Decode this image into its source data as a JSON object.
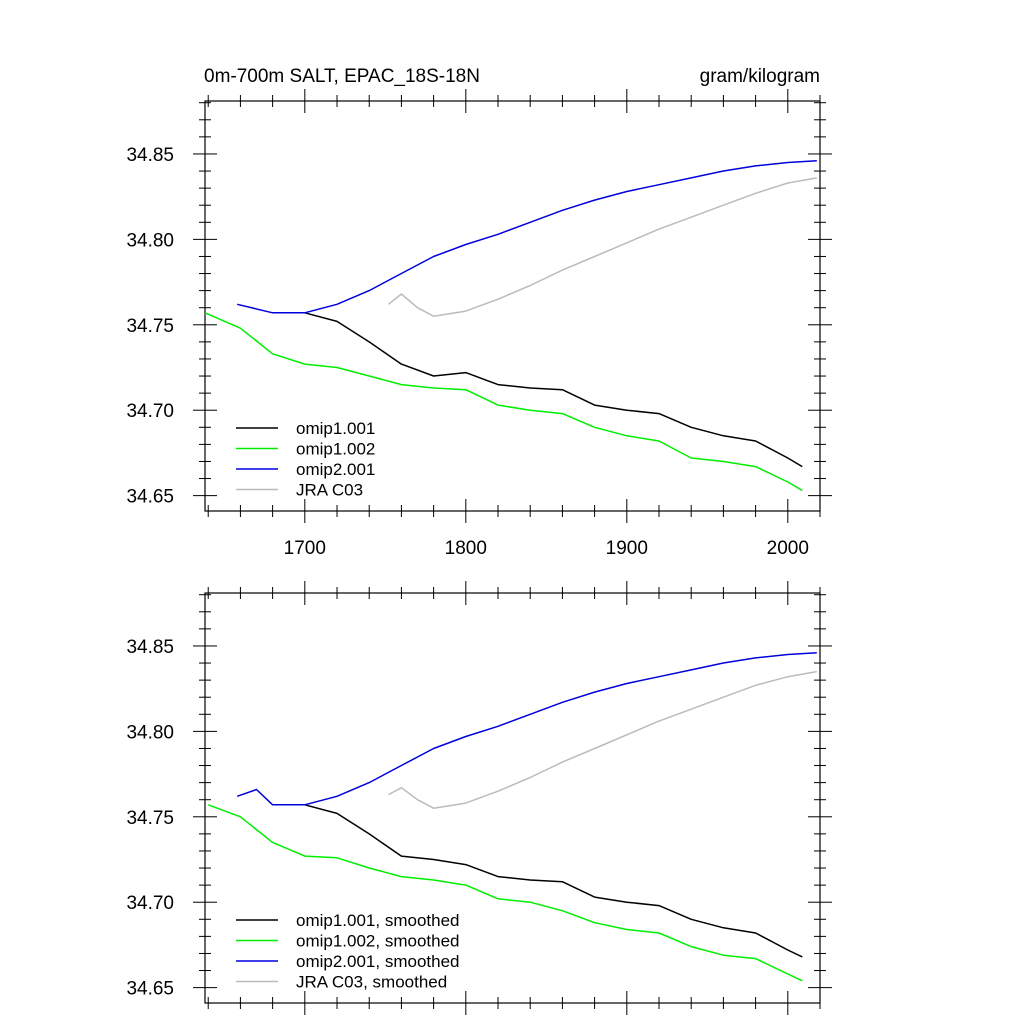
{
  "header": {
    "title": "0m-700m SALT, EPAC_18S-18N",
    "units": "gram/kilogram"
  },
  "colors": {
    "omip1_001": "#000000",
    "omip1_002": "#00ee00",
    "omip2_001": "#0000dd",
    "jra_c03": "#bbbbbb"
  },
  "chart_data": [
    {
      "type": "line",
      "panel": "top",
      "xlim": [
        1638,
        2020
      ],
      "ylim": [
        34.641,
        34.881
      ],
      "x_ticks": [
        1700,
        1800,
        1900,
        2000
      ],
      "y_ticks": [
        34.65,
        34.7,
        34.75,
        34.8,
        34.85
      ],
      "x_tick_labels": [
        "1700",
        "1800",
        "1900",
        "2000"
      ],
      "y_tick_labels": [
        "34.65",
        "34.70",
        "34.75",
        "34.80",
        "34.85"
      ],
      "grid": false,
      "legend_position": "bottom-left",
      "series": [
        {
          "name": "omip1.001",
          "color": "#000000",
          "x": [
            1700,
            1720,
            1740,
            1760,
            1780,
            1800,
            1820,
            1840,
            1860,
            1880,
            1900,
            1920,
            1940,
            1960,
            1980,
            2000,
            2009
          ],
          "y": [
            34.757,
            34.752,
            34.74,
            34.727,
            34.72,
            34.722,
            34.715,
            34.713,
            34.712,
            34.703,
            34.7,
            34.698,
            34.69,
            34.685,
            34.682,
            34.672,
            34.667
          ]
        },
        {
          "name": "omip1.002",
          "color": "#00ee00",
          "x": [
            1638,
            1660,
            1680,
            1700,
            1720,
            1740,
            1760,
            1780,
            1800,
            1820,
            1840,
            1860,
            1880,
            1900,
            1920,
            1940,
            1960,
            1980,
            2000,
            2009
          ],
          "y": [
            34.757,
            34.748,
            34.733,
            34.727,
            34.725,
            34.72,
            34.715,
            34.713,
            34.712,
            34.703,
            34.7,
            34.698,
            34.69,
            34.685,
            34.682,
            34.672,
            34.67,
            34.667,
            34.658,
            34.653
          ]
        },
        {
          "name": "omip2.001",
          "color": "#0000dd",
          "x": [
            1658,
            1680,
            1700,
            1720,
            1740,
            1760,
            1780,
            1800,
            1820,
            1840,
            1860,
            1880,
            1900,
            1920,
            1940,
            1960,
            1980,
            2000,
            2018
          ],
          "y": [
            34.762,
            34.757,
            34.757,
            34.762,
            34.77,
            34.78,
            34.79,
            34.797,
            34.803,
            34.81,
            34.817,
            34.823,
            34.828,
            34.832,
            34.836,
            34.84,
            34.843,
            34.845,
            34.846
          ]
        },
        {
          "name": "JRA C03",
          "color": "#bbbbbb",
          "x": [
            1752,
            1760,
            1770,
            1780,
            1800,
            1820,
            1840,
            1860,
            1880,
            1900,
            1920,
            1940,
            1960,
            1980,
            2000,
            2018
          ],
          "y": [
            34.762,
            34.768,
            34.76,
            34.755,
            34.758,
            34.765,
            34.773,
            34.782,
            34.79,
            34.798,
            34.806,
            34.813,
            34.82,
            34.827,
            34.833,
            34.836
          ]
        }
      ]
    },
    {
      "type": "line",
      "panel": "bottom",
      "xlim": [
        1638,
        2020
      ],
      "ylim": [
        34.641,
        34.881
      ],
      "x_ticks": [
        1700,
        1800,
        1900,
        2000
      ],
      "y_ticks": [
        34.65,
        34.7,
        34.75,
        34.8,
        34.85
      ],
      "y_tick_labels": [
        "34.65",
        "34.70",
        "34.75",
        "34.80",
        "34.85"
      ],
      "grid": false,
      "legend_position": "bottom-left",
      "series": [
        {
          "name": "omip1.001, smoothed",
          "color": "#000000",
          "x": [
            1700,
            1720,
            1740,
            1760,
            1780,
            1800,
            1820,
            1840,
            1860,
            1880,
            1900,
            1920,
            1940,
            1960,
            1980,
            2000,
            2009
          ],
          "y": [
            34.757,
            34.752,
            34.74,
            34.727,
            34.725,
            34.722,
            34.715,
            34.713,
            34.712,
            34.703,
            34.7,
            34.698,
            34.69,
            34.685,
            34.682,
            34.672,
            34.668
          ]
        },
        {
          "name": "omip1.002, smoothed",
          "color": "#00ee00",
          "x": [
            1640,
            1660,
            1680,
            1700,
            1720,
            1740,
            1760,
            1780,
            1800,
            1820,
            1840,
            1860,
            1880,
            1900,
            1920,
            1940,
            1960,
            1980,
            2000,
            2009
          ],
          "y": [
            34.757,
            34.75,
            34.735,
            34.727,
            34.726,
            34.72,
            34.715,
            34.713,
            34.71,
            34.702,
            34.7,
            34.695,
            34.688,
            34.684,
            34.682,
            34.674,
            34.669,
            34.667,
            34.658,
            34.654
          ]
        },
        {
          "name": "omip2.001, smoothed",
          "color": "#0000dd",
          "x": [
            1658,
            1670,
            1680,
            1700,
            1720,
            1740,
            1760,
            1780,
            1800,
            1820,
            1840,
            1860,
            1880,
            1900,
            1920,
            1940,
            1960,
            1980,
            2000,
            2018
          ],
          "y": [
            34.762,
            34.766,
            34.757,
            34.757,
            34.762,
            34.77,
            34.78,
            34.79,
            34.797,
            34.803,
            34.81,
            34.817,
            34.823,
            34.828,
            34.832,
            34.836,
            34.84,
            34.843,
            34.845,
            34.846
          ]
        },
        {
          "name": "JRA C03, smoothed",
          "color": "#bbbbbb",
          "x": [
            1752,
            1760,
            1770,
            1780,
            1800,
            1820,
            1840,
            1860,
            1880,
            1900,
            1920,
            1940,
            1960,
            1980,
            2000,
            2018
          ],
          "y": [
            34.763,
            34.767,
            34.76,
            34.755,
            34.758,
            34.765,
            34.773,
            34.782,
            34.79,
            34.798,
            34.806,
            34.813,
            34.82,
            34.827,
            34.832,
            34.835
          ]
        }
      ]
    }
  ]
}
